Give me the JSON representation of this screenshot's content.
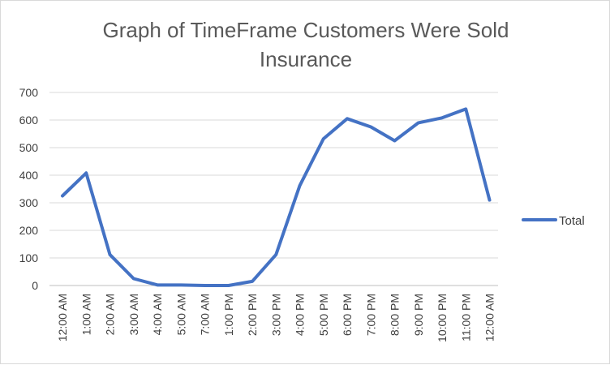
{
  "chart_data": {
    "type": "line",
    "title": "Graph of TimeFrame Customers Were Sold\nInsurance",
    "xlabel": "",
    "ylabel": "",
    "categories": [
      "12:00 AM",
      "1:00 AM",
      "2:00 AM",
      "3:00 AM",
      "4:00 AM",
      "5:00 AM",
      "7:00 AM",
      "1:00 PM",
      "2:00 PM",
      "3:00 PM",
      "4:00 PM",
      "5:00 PM",
      "6:00 PM",
      "7:00 PM",
      "8:00 PM",
      "9:00 PM",
      "10:00 PM",
      "11:00 PM",
      "12:00 AM"
    ],
    "series": [
      {
        "name": "Total",
        "color": "#4472c4",
        "values": [
          325,
          408,
          112,
          25,
          2,
          2,
          0,
          0,
          15,
          112,
          362,
          532,
          605,
          575,
          525,
          590,
          608,
          640,
          310
        ]
      }
    ],
    "yticks": [
      0,
      100,
      200,
      300,
      400,
      500,
      600,
      700
    ],
    "ylim": [
      0,
      700
    ],
    "grid": "horizontal",
    "legend_position": "right"
  }
}
